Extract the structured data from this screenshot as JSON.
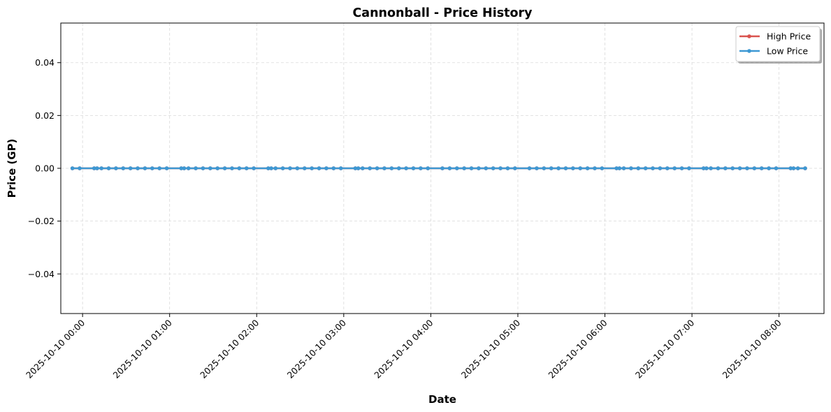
{
  "chart_data": {
    "type": "line",
    "title": "Cannonball - Price History",
    "xlabel": "Date",
    "ylabel": "Price (GP)",
    "xlim": [
      "2025-10-09 23:45",
      "2025-10-10 08:31"
    ],
    "ylim": [
      -0.055,
      0.055
    ],
    "x_ticks": [
      "2025-10-10 00:00",
      "2025-10-10 01:00",
      "2025-10-10 02:00",
      "2025-10-10 03:00",
      "2025-10-10 04:00",
      "2025-10-10 05:00",
      "2025-10-10 06:00",
      "2025-10-10 07:00",
      "2025-10-10 08:00"
    ],
    "y_ticks": [
      "0.04",
      "0.02",
      "0.00",
      "−0.02",
      "−0.04"
    ],
    "y_tick_values": [
      0.04,
      0.02,
      0.0,
      -0.02,
      -0.04
    ],
    "grid": true,
    "legend_position": "top-right",
    "x": [
      "2025-10-09 23:53",
      "2025-10-09 23:58",
      "2025-10-10 00:08",
      "2025-10-10 00:10",
      "2025-10-10 00:13",
      "2025-10-10 00:18",
      "2025-10-10 00:23",
      "2025-10-10 00:28",
      "2025-10-10 00:33",
      "2025-10-10 00:38",
      "2025-10-10 00:43",
      "2025-10-10 00:48",
      "2025-10-10 00:53",
      "2025-10-10 00:58",
      "2025-10-10 01:08",
      "2025-10-10 01:10",
      "2025-10-10 01:13",
      "2025-10-10 01:18",
      "2025-10-10 01:23",
      "2025-10-10 01:28",
      "2025-10-10 01:33",
      "2025-10-10 01:38",
      "2025-10-10 01:43",
      "2025-10-10 01:48",
      "2025-10-10 01:53",
      "2025-10-10 01:58",
      "2025-10-10 02:08",
      "2025-10-10 02:10",
      "2025-10-10 02:13",
      "2025-10-10 02:18",
      "2025-10-10 02:23",
      "2025-10-10 02:28",
      "2025-10-10 02:33",
      "2025-10-10 02:38",
      "2025-10-10 02:43",
      "2025-10-10 02:48",
      "2025-10-10 02:53",
      "2025-10-10 02:58",
      "2025-10-10 03:08",
      "2025-10-10 03:10",
      "2025-10-10 03:13",
      "2025-10-10 03:18",
      "2025-10-10 03:23",
      "2025-10-10 03:28",
      "2025-10-10 03:33",
      "2025-10-10 03:38",
      "2025-10-10 03:43",
      "2025-10-10 03:48",
      "2025-10-10 03:53",
      "2025-10-10 03:58",
      "2025-10-10 04:08",
      "2025-10-10 04:13",
      "2025-10-10 04:18",
      "2025-10-10 04:23",
      "2025-10-10 04:28",
      "2025-10-10 04:33",
      "2025-10-10 04:38",
      "2025-10-10 04:43",
      "2025-10-10 04:48",
      "2025-10-10 04:53",
      "2025-10-10 04:58",
      "2025-10-10 05:08",
      "2025-10-10 05:13",
      "2025-10-10 05:18",
      "2025-10-10 05:23",
      "2025-10-10 05:28",
      "2025-10-10 05:33",
      "2025-10-10 05:38",
      "2025-10-10 05:43",
      "2025-10-10 05:48",
      "2025-10-10 05:53",
      "2025-10-10 05:58",
      "2025-10-10 06:08",
      "2025-10-10 06:10",
      "2025-10-10 06:13",
      "2025-10-10 06:18",
      "2025-10-10 06:23",
      "2025-10-10 06:28",
      "2025-10-10 06:33",
      "2025-10-10 06:38",
      "2025-10-10 06:43",
      "2025-10-10 06:48",
      "2025-10-10 06:53",
      "2025-10-10 06:58",
      "2025-10-10 07:08",
      "2025-10-10 07:10",
      "2025-10-10 07:13",
      "2025-10-10 07:18",
      "2025-10-10 07:23",
      "2025-10-10 07:28",
      "2025-10-10 07:33",
      "2025-10-10 07:38",
      "2025-10-10 07:43",
      "2025-10-10 07:48",
      "2025-10-10 07:53",
      "2025-10-10 07:58",
      "2025-10-10 08:08",
      "2025-10-10 08:10",
      "2025-10-10 08:13",
      "2025-10-10 08:18"
    ],
    "series": [
      {
        "name": "High Price",
        "color": "#d9534f",
        "values": [
          0,
          0,
          0,
          0,
          0,
          0,
          0,
          0,
          0,
          0,
          0,
          0,
          0,
          0,
          0,
          0,
          0,
          0,
          0,
          0,
          0,
          0,
          0,
          0,
          0,
          0,
          0,
          0,
          0,
          0,
          0,
          0,
          0,
          0,
          0,
          0,
          0,
          0,
          0,
          0,
          0,
          0,
          0,
          0,
          0,
          0,
          0,
          0,
          0,
          0,
          0,
          0,
          0,
          0,
          0,
          0,
          0,
          0,
          0,
          0,
          0,
          0,
          0,
          0,
          0,
          0,
          0,
          0,
          0,
          0,
          0,
          0,
          0,
          0,
          0,
          0,
          0,
          0,
          0,
          0,
          0,
          0,
          0,
          0,
          0,
          0,
          0,
          0,
          0,
          0,
          0,
          0,
          0,
          0,
          0,
          0,
          0,
          0,
          0,
          0
        ]
      },
      {
        "name": "Low Price",
        "color": "#3d98d3",
        "values": [
          0,
          0,
          0,
          0,
          0,
          0,
          0,
          0,
          0,
          0,
          0,
          0,
          0,
          0,
          0,
          0,
          0,
          0,
          0,
          0,
          0,
          0,
          0,
          0,
          0,
          0,
          0,
          0,
          0,
          0,
          0,
          0,
          0,
          0,
          0,
          0,
          0,
          0,
          0,
          0,
          0,
          0,
          0,
          0,
          0,
          0,
          0,
          0,
          0,
          0,
          0,
          0,
          0,
          0,
          0,
          0,
          0,
          0,
          0,
          0,
          0,
          0,
          0,
          0,
          0,
          0,
          0,
          0,
          0,
          0,
          0,
          0,
          0,
          0,
          0,
          0,
          0,
          0,
          0,
          0,
          0,
          0,
          0,
          0,
          0,
          0,
          0,
          0,
          0,
          0,
          0,
          0,
          0,
          0,
          0,
          0,
          0,
          0,
          0,
          0
        ]
      }
    ]
  }
}
